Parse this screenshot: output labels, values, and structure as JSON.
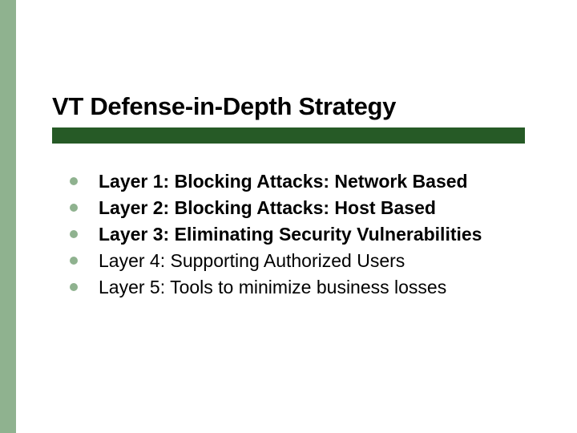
{
  "colors": {
    "accent": "#8fb28f",
    "underline": "#265a26",
    "bullet": "#8fb28f",
    "text": "#000000",
    "background": "#ffffff"
  },
  "title": "VT Defense-in-Depth Strategy",
  "title_fontsize": 31,
  "body_fontsize": 23,
  "bullets": [
    {
      "text": "Layer 1: Blocking Attacks: Network Based",
      "bold": true
    },
    {
      "text": "Layer 2: Blocking Attacks: Host Based",
      "bold": true
    },
    {
      "text": "Layer 3: Eliminating Security Vulnerabilities",
      "bold": true
    },
    {
      "text": "Layer 4: Supporting Authorized Users",
      "bold": false
    },
    {
      "text": "Layer 5: Tools to minimize business losses",
      "bold": false
    }
  ]
}
